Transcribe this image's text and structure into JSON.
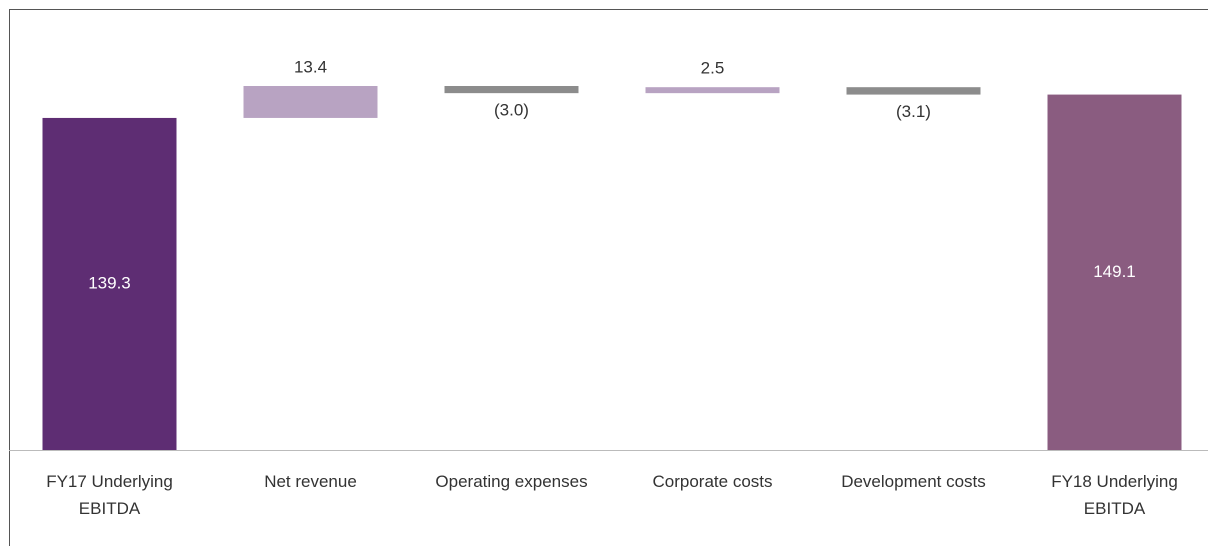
{
  "chart_data": {
    "type": "waterfall",
    "categories": [
      "FY17 Underlying EBITDA",
      "Net revenue",
      "Operating expenses",
      "Corporate costs",
      "Development costs",
      "FY18 Underlying EBITDA"
    ],
    "values": [
      139.3,
      13.4,
      -3.0,
      2.5,
      -3.1,
      149.1
    ],
    "value_labels": [
      "139.3",
      "13.4",
      "(3.0)",
      "2.5",
      "(3.1)",
      "149.1"
    ],
    "measure": [
      "absolute",
      "relative",
      "relative",
      "relative",
      "relative",
      "absolute"
    ],
    "colors": [
      "#5e2d73",
      "#b8a3c2",
      "#8c8c8c",
      "#b8a3c2",
      "#8c8c8c",
      "#8a5c80"
    ]
  }
}
